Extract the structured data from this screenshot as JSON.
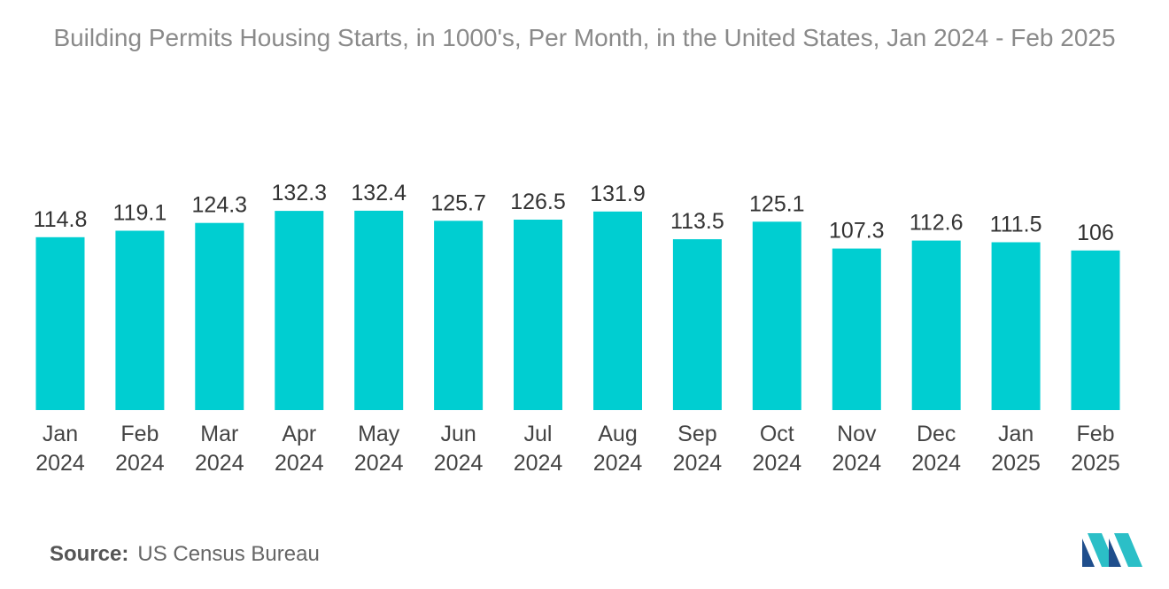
{
  "chart_data": {
    "type": "bar",
    "title": "Building Permits Housing Starts, in 1000's, Per Month, in the United States, Jan 2024 - Feb 2025",
    "categories": [
      [
        "Jan",
        "2024"
      ],
      [
        "Feb",
        "2024"
      ],
      [
        "Mar",
        "2024"
      ],
      [
        "Apr",
        "2024"
      ],
      [
        "May",
        "2024"
      ],
      [
        "Jun",
        "2024"
      ],
      [
        "Jul",
        "2024"
      ],
      [
        "Aug",
        "2024"
      ],
      [
        "Sep",
        "2024"
      ],
      [
        "Oct",
        "2024"
      ],
      [
        "Nov",
        "2024"
      ],
      [
        "Dec",
        "2024"
      ],
      [
        "Jan",
        "2025"
      ],
      [
        "Feb",
        "2025"
      ]
    ],
    "values": [
      114.8,
      119.1,
      124.3,
      132.3,
      132.4,
      125.7,
      126.5,
      131.9,
      113.5,
      125.1,
      107.3,
      112.6,
      111.5,
      106
    ],
    "value_labels": [
      "114.8",
      "119.1",
      "124.3",
      "132.3",
      "132.4",
      "125.7",
      "126.5",
      "131.9",
      "113.5",
      "125.1",
      "107.3",
      "112.6",
      "111.5",
      "106"
    ],
    "xlabel": "",
    "ylabel": "",
    "ylim": [
      0,
      140
    ],
    "grid": false,
    "legend": "none",
    "bar_color": "#00ced1"
  },
  "footer": {
    "source_label": "Source:",
    "source_value": "US Census Bureau"
  },
  "brand": {
    "logo_icon": "mordor-intelligence-logo-icon",
    "logo_colors": [
      "#1f4e8c",
      "#2bbfc7"
    ]
  }
}
